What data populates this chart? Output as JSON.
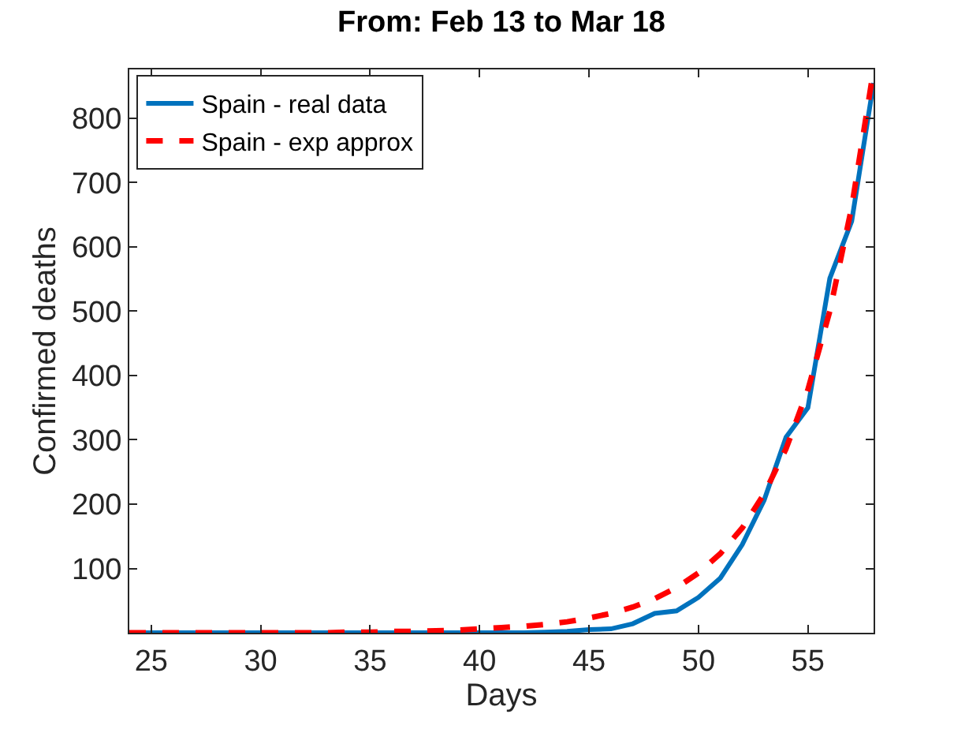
{
  "chart_data": {
    "type": "line",
    "title": "From: Feb 13 to Mar 18",
    "xlabel": "Days",
    "ylabel": "Confirmed deaths",
    "x": [
      24,
      25,
      26,
      27,
      28,
      29,
      30,
      31,
      32,
      33,
      34,
      35,
      36,
      37,
      38,
      39,
      40,
      41,
      42,
      43,
      44,
      45,
      46,
      47,
      48,
      49,
      50,
      51,
      52,
      53,
      54,
      55,
      56,
      57,
      58
    ],
    "series": [
      {
        "name": "Spain - real data",
        "color": "#0072bd",
        "line_style": "solid",
        "values": [
          0,
          0,
          0,
          0,
          0,
          0,
          0,
          0,
          0,
          0,
          0,
          0,
          0,
          0,
          0,
          0,
          0,
          0,
          0,
          1,
          2,
          5,
          6,
          14,
          30,
          34,
          55,
          85,
          137,
          206,
          304,
          350,
          551,
          640,
          855
        ]
      },
      {
        "name": "Spain - exp approx",
        "color": "#ff0000",
        "line_style": "dashed",
        "values": [
          0,
          0,
          0,
          0,
          0,
          0,
          0,
          0,
          0,
          0,
          1,
          1,
          2,
          2,
          3,
          4,
          6,
          8,
          10,
          13,
          17,
          23,
          30,
          40,
          53,
          70,
          93,
          123,
          163,
          216,
          286,
          378,
          500,
          662,
          876
        ]
      }
    ],
    "xlim": [
      24,
      58
    ],
    "xticks": [
      25,
      30,
      35,
      40,
      45,
      50,
      55
    ],
    "ylim": [
      0,
      876
    ],
    "yticks": [
      100,
      200,
      300,
      400,
      500,
      600,
      700,
      800
    ],
    "grid": false,
    "legend": "top left",
    "marker": "none"
  }
}
